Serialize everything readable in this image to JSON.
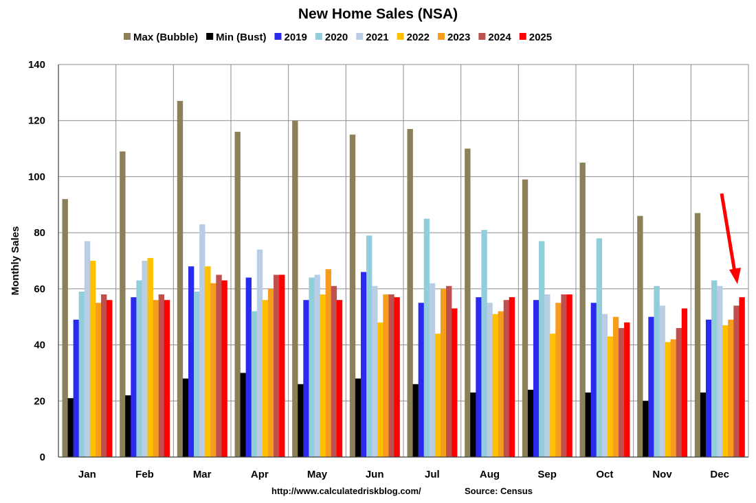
{
  "chart_data": {
    "type": "bar",
    "title": "New Home Sales (NSA)",
    "ylabel": "Monthly Sales",
    "xlabel": "",
    "ylim": [
      0,
      140
    ],
    "yticks": [
      0,
      20,
      40,
      60,
      80,
      100,
      120,
      140
    ],
    "grid": true,
    "legend_position": "top",
    "categories": [
      "Jan",
      "Feb",
      "Mar",
      "Apr",
      "May",
      "Jun",
      "Jul",
      "Aug",
      "Sep",
      "Oct",
      "Nov",
      "Dec"
    ],
    "series": [
      {
        "name": "Max (Bubble)",
        "color": "#8b8059",
        "values": [
          92,
          109,
          127,
          116,
          120,
          115,
          117,
          110,
          99,
          105,
          86,
          87
        ]
      },
      {
        "name": "Min (Bust)",
        "color": "#000000",
        "values": [
          21,
          22,
          28,
          30,
          26,
          28,
          26,
          23,
          24,
          23,
          20,
          23
        ]
      },
      {
        "name": "2019",
        "color": "#2b2bf0",
        "values": [
          49,
          57,
          68,
          64,
          56,
          66,
          55,
          57,
          56,
          55,
          50,
          49
        ]
      },
      {
        "name": "2020",
        "color": "#92cddc",
        "values": [
          59,
          63,
          59,
          52,
          64,
          79,
          85,
          81,
          77,
          78,
          61,
          63
        ]
      },
      {
        "name": "2021",
        "color": "#b9cde5",
        "values": [
          77,
          70,
          83,
          74,
          65,
          61,
          62,
          55,
          58,
          51,
          54,
          61
        ]
      },
      {
        "name": "2022",
        "color": "#ffc000",
        "values": [
          70,
          71,
          68,
          56,
          58,
          48,
          44,
          51,
          44,
          43,
          41,
          47
        ]
      },
      {
        "name": "2023",
        "color": "#f79d1e",
        "values": [
          55,
          56,
          62,
          60,
          67,
          58,
          60,
          52,
          55,
          50,
          42,
          49
        ]
      },
      {
        "name": "2024",
        "color": "#c0504d",
        "values": [
          58,
          58,
          65,
          65,
          61,
          58,
          61,
          56,
          58,
          46,
          46,
          54
        ]
      },
      {
        "name": "2025",
        "color": "#ff0000",
        "values": [
          56,
          56,
          63,
          65,
          56,
          57,
          53,
          57,
          58,
          48,
          53,
          57
        ]
      }
    ],
    "annotations": [
      {
        "type": "arrow",
        "color": "#ff0000",
        "points_to": "Dec 2025"
      }
    ]
  },
  "footer": {
    "url": "http://www.calculatedriskblog.com/",
    "source": "Source: Census"
  }
}
